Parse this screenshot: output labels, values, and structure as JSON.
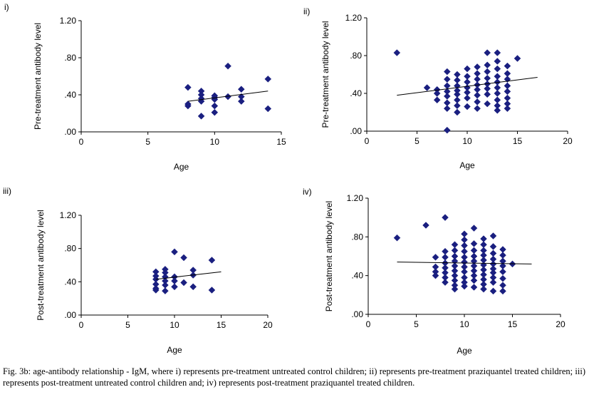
{
  "caption": "Fig. 3b: age-antibody relationship - IgM, where i) represents pre-treatment untreated control children; ii) represents pre-treatment praziquantel treated children; iii) represents post-treatment untreated control children and; iv) represents post-treatment praziquantel treated children.",
  "marker_color": "#1a1f80",
  "chart_data": [
    {
      "type": "scatter",
      "panel_label": "i)",
      "xlabel": "Age",
      "ylabel": "Pre-treatment antibody level",
      "xlim": [
        0,
        15
      ],
      "xticks": [
        "0",
        "5",
        "10",
        "15"
      ],
      "ylim": [
        0,
        1.2
      ],
      "yticks": [
        ".00",
        ".40",
        ".80",
        "1.20"
      ],
      "grid": false,
      "points": [
        [
          8,
          0.48
        ],
        [
          8,
          0.3
        ],
        [
          8,
          0.28
        ],
        [
          9,
          0.44
        ],
        [
          9,
          0.4
        ],
        [
          9,
          0.36
        ],
        [
          9,
          0.33
        ],
        [
          9,
          0.17
        ],
        [
          10,
          0.39
        ],
        [
          10,
          0.37
        ],
        [
          10,
          0.35
        ],
        [
          10,
          0.28
        ],
        [
          10,
          0.21
        ],
        [
          11,
          0.71
        ],
        [
          11,
          0.38
        ],
        [
          12,
          0.46
        ],
        [
          12,
          0.38
        ],
        [
          12,
          0.33
        ],
        [
          14,
          0.57
        ],
        [
          14,
          0.25
        ]
      ],
      "trend": {
        "x": [
          8,
          14
        ],
        "y": [
          0.33,
          0.44
        ]
      }
    },
    {
      "type": "scatter",
      "panel_label": "ii)",
      "xlabel": "Age",
      "ylabel": "Pre-treatment antibody level",
      "xlim": [
        0,
        20
      ],
      "xticks": [
        "0",
        "5",
        "10",
        "15",
        "20"
      ],
      "ylim": [
        0,
        1.2
      ],
      "yticks": [
        ".00",
        ".40",
        ".80",
        "1.20"
      ],
      "grid": false,
      "points": [
        [
          3,
          0.83
        ],
        [
          6,
          0.46
        ],
        [
          7,
          0.44
        ],
        [
          7,
          0.4
        ],
        [
          7,
          0.33
        ],
        [
          8,
          0.63
        ],
        [
          8,
          0.55
        ],
        [
          8,
          0.48
        ],
        [
          8,
          0.42
        ],
        [
          8,
          0.37
        ],
        [
          8,
          0.3
        ],
        [
          8,
          0.24
        ],
        [
          8,
          0.01
        ],
        [
          9,
          0.6
        ],
        [
          9,
          0.54
        ],
        [
          9,
          0.48
        ],
        [
          9,
          0.43
        ],
        [
          9,
          0.39
        ],
        [
          9,
          0.33
        ],
        [
          9,
          0.27
        ],
        [
          9,
          0.2
        ],
        [
          10,
          0.66
        ],
        [
          10,
          0.58
        ],
        [
          10,
          0.52
        ],
        [
          10,
          0.46
        ],
        [
          10,
          0.41
        ],
        [
          10,
          0.35
        ],
        [
          10,
          0.26
        ],
        [
          11,
          0.68
        ],
        [
          11,
          0.61
        ],
        [
          11,
          0.55
        ],
        [
          11,
          0.49
        ],
        [
          11,
          0.44
        ],
        [
          11,
          0.38
        ],
        [
          11,
          0.31
        ],
        [
          11,
          0.24
        ],
        [
          12,
          0.83
        ],
        [
          12,
          0.7
        ],
        [
          12,
          0.63
        ],
        [
          12,
          0.56
        ],
        [
          12,
          0.5
        ],
        [
          12,
          0.45
        ],
        [
          12,
          0.39
        ],
        [
          12,
          0.29
        ],
        [
          13,
          0.83
        ],
        [
          13,
          0.74
        ],
        [
          13,
          0.66
        ],
        [
          13,
          0.58
        ],
        [
          13,
          0.52
        ],
        [
          13,
          0.46
        ],
        [
          13,
          0.4
        ],
        [
          13,
          0.33
        ],
        [
          13,
          0.27
        ],
        [
          13,
          0.22
        ],
        [
          14,
          0.69
        ],
        [
          14,
          0.61
        ],
        [
          14,
          0.55
        ],
        [
          14,
          0.48
        ],
        [
          14,
          0.42
        ],
        [
          14,
          0.35
        ],
        [
          14,
          0.29
        ],
        [
          14,
          0.24
        ],
        [
          15,
          0.77
        ]
      ],
      "trend": {
        "x": [
          3,
          17
        ],
        "y": [
          0.38,
          0.57
        ]
      }
    },
    {
      "type": "scatter",
      "panel_label": "iii)",
      "xlabel": "Age",
      "ylabel": "Post-treatment antibody level",
      "xlim": [
        0,
        20
      ],
      "xticks": [
        "0",
        "5",
        "10",
        "15",
        "20"
      ],
      "ylim": [
        0,
        1.2
      ],
      "yticks": [
        ".00",
        ".40",
        ".80",
        "1.20"
      ],
      "grid": false,
      "points": [
        [
          8,
          0.52
        ],
        [
          8,
          0.47
        ],
        [
          8,
          0.43
        ],
        [
          8,
          0.37
        ],
        [
          8,
          0.32
        ],
        [
          8,
          0.3
        ],
        [
          9,
          0.55
        ],
        [
          9,
          0.51
        ],
        [
          9,
          0.46
        ],
        [
          9,
          0.41
        ],
        [
          9,
          0.36
        ],
        [
          9,
          0.29
        ],
        [
          10,
          0.76
        ],
        [
          10,
          0.46
        ],
        [
          10,
          0.41
        ],
        [
          10,
          0.34
        ],
        [
          11,
          0.69
        ],
        [
          11,
          0.39
        ],
        [
          12,
          0.54
        ],
        [
          12,
          0.48
        ],
        [
          12,
          0.34
        ],
        [
          14,
          0.66
        ],
        [
          14,
          0.3
        ]
      ],
      "trend": {
        "x": [
          8,
          15
        ],
        "y": [
          0.43,
          0.52
        ]
      }
    },
    {
      "type": "scatter",
      "panel_label": "iv)",
      "xlabel": "Age",
      "ylabel": "Post-treatment antibody level",
      "xlim": [
        0,
        20
      ],
      "xticks": [
        "0",
        "5",
        "10",
        "15",
        "20"
      ],
      "ylim": [
        0,
        1.2
      ],
      "yticks": [
        ".00",
        ".40",
        ".80",
        "1.20"
      ],
      "grid": false,
      "points": [
        [
          3,
          0.79
        ],
        [
          6,
          0.92
        ],
        [
          7,
          0.59
        ],
        [
          7,
          0.49
        ],
        [
          7,
          0.44
        ],
        [
          7,
          0.4
        ],
        [
          8,
          1.0
        ],
        [
          8,
          0.65
        ],
        [
          8,
          0.59
        ],
        [
          8,
          0.53
        ],
        [
          8,
          0.48
        ],
        [
          8,
          0.43
        ],
        [
          8,
          0.38
        ],
        [
          8,
          0.33
        ],
        [
          9,
          0.72
        ],
        [
          9,
          0.66
        ],
        [
          9,
          0.6
        ],
        [
          9,
          0.55
        ],
        [
          9,
          0.5
        ],
        [
          9,
          0.45
        ],
        [
          9,
          0.4
        ],
        [
          9,
          0.35
        ],
        [
          9,
          0.3
        ],
        [
          9,
          0.26
        ],
        [
          10,
          0.83
        ],
        [
          10,
          0.77
        ],
        [
          10,
          0.71
        ],
        [
          10,
          0.65
        ],
        [
          10,
          0.59
        ],
        [
          10,
          0.54
        ],
        [
          10,
          0.49
        ],
        [
          10,
          0.44
        ],
        [
          10,
          0.38
        ],
        [
          10,
          0.33
        ],
        [
          10,
          0.29
        ],
        [
          11,
          0.89
        ],
        [
          11,
          0.73
        ],
        [
          11,
          0.66
        ],
        [
          11,
          0.6
        ],
        [
          11,
          0.55
        ],
        [
          11,
          0.5
        ],
        [
          11,
          0.45
        ],
        [
          11,
          0.4
        ],
        [
          11,
          0.35
        ],
        [
          11,
          0.28
        ],
        [
          12,
          0.78
        ],
        [
          12,
          0.72
        ],
        [
          12,
          0.66
        ],
        [
          12,
          0.61
        ],
        [
          12,
          0.56
        ],
        [
          12,
          0.51
        ],
        [
          12,
          0.46
        ],
        [
          12,
          0.41
        ],
        [
          12,
          0.36
        ],
        [
          12,
          0.31
        ],
        [
          12,
          0.26
        ],
        [
          13,
          0.81
        ],
        [
          13,
          0.7
        ],
        [
          13,
          0.63
        ],
        [
          13,
          0.57
        ],
        [
          13,
          0.52
        ],
        [
          13,
          0.47
        ],
        [
          13,
          0.43
        ],
        [
          13,
          0.38
        ],
        [
          13,
          0.33
        ],
        [
          13,
          0.24
        ],
        [
          14,
          0.67
        ],
        [
          14,
          0.61
        ],
        [
          14,
          0.55
        ],
        [
          14,
          0.5
        ],
        [
          14,
          0.44
        ],
        [
          14,
          0.37
        ],
        [
          14,
          0.3
        ],
        [
          14,
          0.24
        ],
        [
          15,
          0.52
        ]
      ],
      "trend": {
        "x": [
          3,
          17
        ],
        "y": [
          0.54,
          0.52
        ]
      }
    }
  ]
}
